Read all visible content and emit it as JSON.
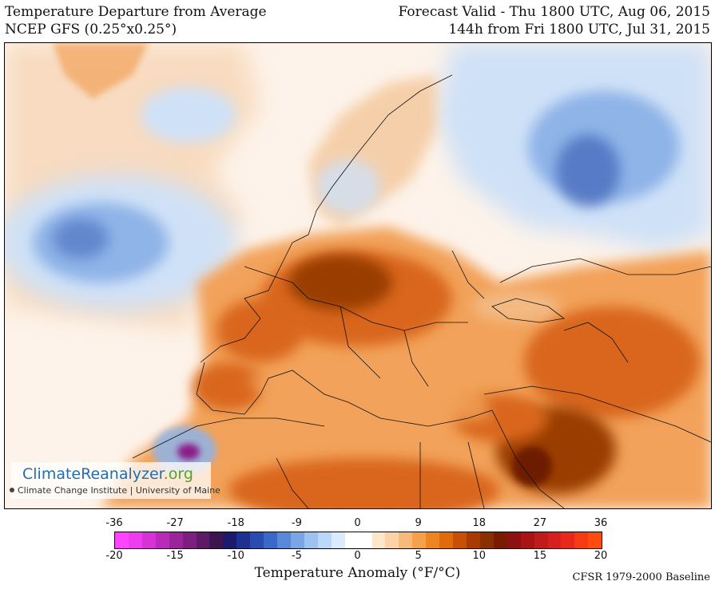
{
  "header": {
    "title_line1": "Temperature Departure from Average",
    "title_line2": "NCEP GFS (0.25°x0.25°)",
    "valid_line1": "Forecast Valid - Thu 1800 UTC, Aug 06, 2015",
    "valid_line2": "144h from Fri 1800 UTC, Jul 31, 2015"
  },
  "logo": {
    "part1": "ClimateReanalyzer",
    "part2": ".org",
    "subtitle": "Climate Change Institute | University of Maine"
  },
  "legend": {
    "fahrenheit_ticks": [
      "-36",
      "-27",
      "-18",
      "-9",
      "0",
      "9",
      "18",
      "27",
      "36"
    ],
    "celsius_ticks": [
      "-20",
      "-15",
      "-10",
      "-5",
      "0",
      "5",
      "10",
      "15",
      "20"
    ],
    "colors": [
      "#ff44ff",
      "#f03cf0",
      "#d632d6",
      "#b82ab8",
      "#9a249a",
      "#7e1f80",
      "#5e1a64",
      "#3c144e",
      "#1c1a6c",
      "#1e3090",
      "#284cb0",
      "#3a68c8",
      "#5a88d8",
      "#7aa6e6",
      "#9cc2f0",
      "#bcd8f8",
      "#dceaff",
      "#ffffff",
      "#ffffff",
      "#fde6cc",
      "#fcd2a6",
      "#f8ba7a",
      "#f5a04c",
      "#ef8420",
      "#e06a0c",
      "#c85006",
      "#a83a02",
      "#883000",
      "#7a1a00",
      "#8e1010",
      "#a81414",
      "#c01a1a",
      "#d62020",
      "#e8281c",
      "#f63a14",
      "#ff4a10"
    ],
    "axis_label": "Temperature Anomaly (°F/°C)",
    "baseline": "CFSR 1979-2000 Baseline"
  },
  "map": {
    "region": "Europe, North Africa and Middle East",
    "palette": {
      "ocean_neutral": "#fdf3ea",
      "land_base": "#f3c08e",
      "cold_light": "#cfe1f7",
      "cold_mid": "#8fb4e8",
      "cold_deep": "#3f64b8",
      "warm_light": "#f2a25a",
      "warm_mid": "#d9661a",
      "warm_deep": "#9a3c06",
      "hot_core": "#6e1c00",
      "extreme_cold": "#8a1f8a",
      "border_line": "#111111"
    }
  }
}
